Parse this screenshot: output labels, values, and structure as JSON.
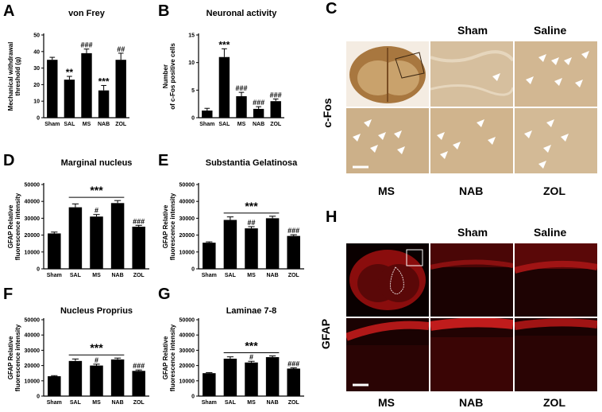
{
  "colors": {
    "bar": "#000000",
    "axis": "#000000",
    "ihc": "#d1b592",
    "ihc_dark": "#8a5a2a",
    "fluor_bg": "#0a0000",
    "fluor": "#d41414",
    "arrow": "#ffffff"
  },
  "chart_data": [
    {
      "id": "A",
      "type": "bar",
      "title": "von Frey",
      "ylabel": [
        "Mechanical withdrawal",
        "threshold (g)"
      ],
      "categories": [
        "Sham",
        "SAL",
        "MS",
        "NAB",
        "ZOL"
      ],
      "values": [
        35,
        23,
        39,
        16.5,
        35
      ],
      "errors": [
        1.5,
        2,
        2.5,
        3,
        4
      ],
      "annotations": [
        "",
        "**",
        "###",
        "***",
        "##"
      ],
      "ylim": [
        0,
        50
      ],
      "yticks": [
        "0",
        "10",
        "20",
        "30",
        "40",
        "50"
      ]
    },
    {
      "id": "B",
      "type": "bar",
      "title": "Neuronal activity",
      "ylabel": [
        "Number",
        "of c-Fos positive cells"
      ],
      "categories": [
        "Sham",
        "SAL",
        "MS",
        "NAB",
        "ZOL"
      ],
      "values": [
        1.3,
        11,
        3.9,
        1.6,
        3
      ],
      "errors": [
        0.4,
        1.5,
        0.7,
        0.4,
        0.4
      ],
      "annotations": [
        "",
        "***",
        "###",
        "###",
        "###"
      ],
      "ylim": [
        0,
        15
      ],
      "yticks": [
        "0",
        "5",
        "10",
        "15"
      ]
    },
    {
      "id": "D",
      "type": "bar",
      "title": "Marginal nucleus",
      "ylabel": [
        "GFAP Relative",
        "fluorescence  intensity"
      ],
      "categories": [
        "Sham",
        "SAL",
        "MS",
        "NAB",
        "ZOL"
      ],
      "values": [
        21000,
        36500,
        31000,
        39000,
        25000
      ],
      "errors": [
        800,
        2000,
        1200,
        1500,
        800
      ],
      "annotations": [
        "",
        "",
        "#",
        "",
        "###"
      ],
      "bracket": "***",
      "ylim": [
        0,
        50000
      ],
      "yticks": [
        "0",
        "10000",
        "20000",
        "30000",
        "40000",
        "50000"
      ]
    },
    {
      "id": "E",
      "type": "bar",
      "title": "Substantia Gelatinosa",
      "ylabel": [
        "GFAP Relative",
        "fluorescence  intensity"
      ],
      "categories": [
        "Sham",
        "SAL",
        "MS",
        "NAB",
        "ZOL"
      ],
      "values": [
        15500,
        29000,
        24000,
        30000,
        19500
      ],
      "errors": [
        500,
        1800,
        1000,
        1200,
        700
      ],
      "annotations": [
        "",
        "",
        "##",
        "",
        "###"
      ],
      "bracket": "***",
      "ylim": [
        0,
        50000
      ],
      "yticks": [
        "0",
        "10000",
        "20000",
        "30000",
        "40000",
        "50000"
      ]
    },
    {
      "id": "F",
      "type": "bar",
      "title": "Nucleus Proprius",
      "ylabel": [
        "GFAP Relative",
        "fluorescence  intensity"
      ],
      "categories": [
        "Sham",
        "SAL",
        "MS",
        "NAB",
        "ZOL"
      ],
      "values": [
        13000,
        23000,
        20000,
        24000,
        16500
      ],
      "errors": [
        400,
        1300,
        900,
        900,
        600
      ],
      "annotations": [
        "",
        "",
        "#",
        "",
        "###"
      ],
      "bracket": "***",
      "ylim": [
        0,
        50000
      ],
      "yticks": [
        "0",
        "10000",
        "20000",
        "30000",
        "40000",
        "50000"
      ]
    },
    {
      "id": "G",
      "type": "bar",
      "title": "Laminae 7-8",
      "ylabel": [
        "GFAP Relative",
        "fluorescence  intensity"
      ],
      "categories": [
        "Sham",
        "SAL",
        "MS",
        "NAB",
        "ZOL"
      ],
      "values": [
        15000,
        24500,
        22000,
        25500,
        18000
      ],
      "errors": [
        400,
        1200,
        800,
        800,
        500
      ],
      "annotations": [
        "",
        "",
        "#",
        "",
        "###"
      ],
      "bracket": "***",
      "ylim": [
        0,
        50000
      ],
      "yticks": [
        "0",
        "10000",
        "20000",
        "30000",
        "40000",
        "50000"
      ]
    }
  ],
  "panels": {
    "C": {
      "letter": "C",
      "side_label": "c-Fos",
      "top_headers": [
        "Sham",
        "Saline"
      ],
      "bottom_labels": [
        "MS",
        "NAB",
        "ZOL"
      ]
    },
    "H": {
      "letter": "H",
      "side_label": "GFAP",
      "top_headers": [
        "Sham",
        "Saline"
      ],
      "bottom_labels": [
        "MS",
        "NAB",
        "ZOL"
      ]
    }
  }
}
